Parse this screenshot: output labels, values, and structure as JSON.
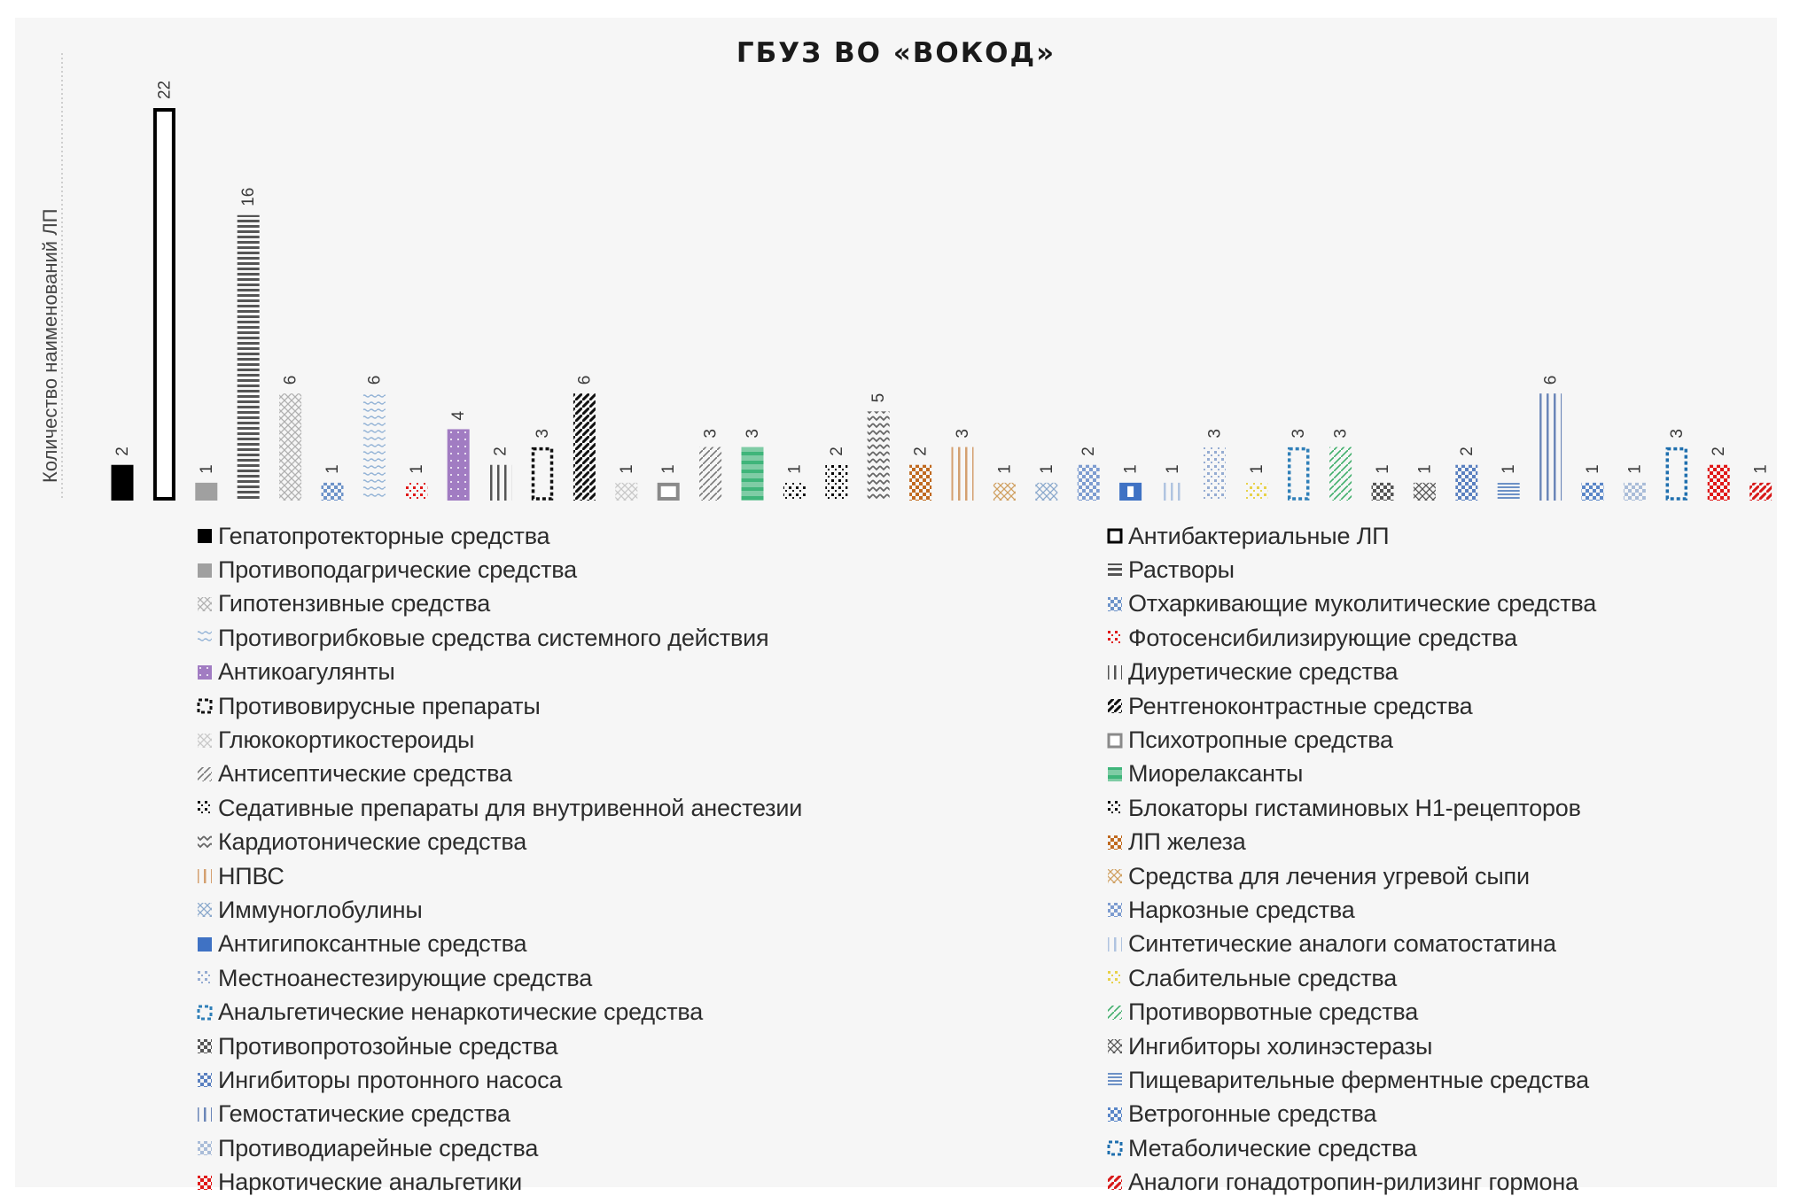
{
  "chart_data": {
    "type": "bar",
    "title": "ГБУЗ ВО «ВОКОД»",
    "xlabel": "",
    "ylabel": "Количество наименований ЛП",
    "ylim": [
      0,
      22
    ],
    "grid": false,
    "data_labels": true,
    "data_label_orientation": "vertical",
    "legend_position": "bottom",
    "categories": [
      "Гепатопротекторные средства",
      "Антибактериальные ЛП",
      "Противоподагрические средства",
      "Растворы",
      "Гипотензивные средства",
      "Отхаркивающие муколитические средства",
      "Противогрибковые средства системного действия",
      "Фотосенсибилизирующие средства",
      "Антикоагулянты",
      "Диуретические средства",
      "Противовирусные препараты",
      "Рентгеноконтрастные средства",
      "Глюкокортикостероиды",
      "Психотропные средства",
      "Антисептические средства",
      "Миорелаксанты",
      "Седативные препараты для внутривенной анестезии",
      "Блокаторы гистаминовых Н1-рецепторов",
      "Кардиотонические средства",
      "ЛП железа",
      "НПВС",
      "Средства для лечения угревой сыпи",
      "Наркозные средства",
      "Иммуноглобулины",
      "Антигипоксантные средства",
      "Синтетические аналоги соматостатина",
      "Местноанестезирующие средства",
      "Слабительные средства",
      "Анальгетические ненаркотические средства",
      "Противорвотные средства",
      "Противопротозойные средства",
      "Ингибиторы холинэстеразы",
      "Ингибиторы протонного насоса",
      "Пищеварительные ферментные средства",
      "Гемостатические средства",
      "Ветрогонные средства",
      "Противодиарейные средства",
      "Метаболические средства",
      "Наркотические анальгетики",
      "Аналоги гонадотропин-рилизинг гормона"
    ],
    "values": [
      2,
      22,
      1,
      16,
      6,
      1,
      6,
      1,
      4,
      2,
      3,
      6,
      1,
      1,
      3,
      3,
      1,
      2,
      5,
      2,
      3,
      1,
      1,
      2,
      1,
      1,
      3,
      1,
      3,
      3,
      1,
      1,
      2,
      1,
      6,
      1,
      1,
      3,
      2,
      1
    ],
    "series_styles": [
      {
        "pattern": "solid",
        "color": "#000000"
      },
      {
        "pattern": "outline",
        "color": "#000000"
      },
      {
        "pattern": "solid",
        "color": "#a0a0a0"
      },
      {
        "pattern": "hlines",
        "color": "#555555"
      },
      {
        "pattern": "cross",
        "color": "#b0b0b0"
      },
      {
        "pattern": "checker",
        "color": "#6d93c9"
      },
      {
        "pattern": "wave",
        "color": "#93b3d6"
      },
      {
        "pattern": "dots",
        "color": "#e01818"
      },
      {
        "pattern": "dotsfill",
        "color": "#a17cc2"
      },
      {
        "pattern": "vlines",
        "color": "#555555"
      },
      {
        "pattern": "dashed-outline",
        "color": "#111111"
      },
      {
        "pattern": "diag",
        "color": "#111111"
      },
      {
        "pattern": "cross",
        "color": "#c8c8c8"
      },
      {
        "pattern": "outline",
        "color": "#8a8a8a"
      },
      {
        "pattern": "diag-thin",
        "color": "#777777"
      },
      {
        "pattern": "hbands",
        "color": "#3fb57a"
      },
      {
        "pattern": "dots",
        "color": "#111111"
      },
      {
        "pattern": "dots",
        "color": "#000000"
      },
      {
        "pattern": "zigzag",
        "color": "#666666"
      },
      {
        "pattern": "checker",
        "color": "#c06a20"
      },
      {
        "pattern": "vlines",
        "color": "#d4a070"
      },
      {
        "pattern": "cross",
        "color": "#d0a060"
      },
      {
        "pattern": "cross",
        "color": "#8aa8cc"
      },
      {
        "pattern": "checker",
        "color": "#7d9cd0"
      },
      {
        "pattern": "solid-window",
        "color": "#3f72c4"
      },
      {
        "pattern": "vlines",
        "color": "#b0c4e0"
      },
      {
        "pattern": "dots",
        "color": "#95acd2"
      },
      {
        "pattern": "dots",
        "color": "#e8d24a"
      },
      {
        "pattern": "dashed-outline",
        "color": "#2f7fb8"
      },
      {
        "pattern": "diag-thin",
        "color": "#3fae6a"
      },
      {
        "pattern": "checker",
        "color": "#555555"
      },
      {
        "pattern": "cross",
        "color": "#555555"
      },
      {
        "pattern": "checker",
        "color": "#5a80c0"
      },
      {
        "pattern": "hlines2",
        "color": "#6d91c6"
      },
      {
        "pattern": "vlines",
        "color": "#6b86b8"
      },
      {
        "pattern": "checker",
        "color": "#5a86c8"
      },
      {
        "pattern": "checker",
        "color": "#a9bcd8"
      },
      {
        "pattern": "dashed-outline",
        "color": "#1f6fae"
      },
      {
        "pattern": "checker",
        "color": "#e01818"
      },
      {
        "pattern": "diag",
        "color": "#d81818"
      }
    ]
  },
  "legend": {
    "left": [
      {
        "label": "Гепатопротекторные средства",
        "index": 0
      },
      {
        "label": "Противоподагрические средства",
        "index": 2
      },
      {
        "label": "Гипотензивные средства",
        "index": 4
      },
      {
        "label": "Противогрибковые средства системного действия",
        "index": 6
      },
      {
        "label": "Антикоагулянты",
        "index": 8
      },
      {
        "label": "Противовирусные препараты",
        "index": 10
      },
      {
        "label": "Глюкокортикостероиды",
        "index": 12
      },
      {
        "label": "Антисептические средства",
        "index": 14
      },
      {
        "label": "Седативные препараты для внутривенной анестезии",
        "index": 16
      },
      {
        "label": "Кардиотонические средства",
        "index": 18
      },
      {
        "label": "НПВС",
        "index": 20
      },
      {
        "label": "Иммуноглобулины",
        "index": 22
      },
      {
        "label": "Антигипоксантные средства",
        "index": 24
      },
      {
        "label": "Местноанестезирующие средства",
        "index": 26
      },
      {
        "label": "Анальгетические ненаркотические средства",
        "index": 28
      },
      {
        "label": "Противопротозойные средства",
        "index": 30
      },
      {
        "label": "Ингибиторы протонного насоса",
        "index": 32
      },
      {
        "label": "Гемостатические средства",
        "index": 34
      },
      {
        "label": "Противодиарейные средства",
        "index": 36
      },
      {
        "label": "Наркотические анальгетики",
        "index": 38
      }
    ],
    "right": [
      {
        "label": "Антибактериальные ЛП",
        "index": 1
      },
      {
        "label": "Растворы",
        "index": 3
      },
      {
        "label": "Отхаркивающие муколитические средства",
        "index": 5
      },
      {
        "label": "Фотосенсибилизирующие средства",
        "index": 7
      },
      {
        "label": "Диуретические средства",
        "index": 9
      },
      {
        "label": "Рентгеноконтрастные средства",
        "index": 11
      },
      {
        "label": "Психотропные средства",
        "index": 13
      },
      {
        "label": "Миорелаксанты",
        "index": 15
      },
      {
        "label": "Блокаторы гистаминовых Н1-рецепторов",
        "index": 17
      },
      {
        "label": "ЛП железа",
        "index": 19
      },
      {
        "label": "Средства для лечения угревой сыпи",
        "index": 21
      },
      {
        "label": "Наркозные средства",
        "index": 23
      },
      {
        "label": "Синтетические аналоги соматостатина",
        "index": 25
      },
      {
        "label": "Слабительные средства",
        "index": 27
      },
      {
        "label": "Противорвотные средства",
        "index": 29
      },
      {
        "label": "Ингибиторы холинэстеразы",
        "index": 31
      },
      {
        "label": "Пищеварительные ферментные средства",
        "index": 33
      },
      {
        "label": "Ветрогонные средства",
        "index": 35
      },
      {
        "label": "Метаболические средства",
        "index": 37
      },
      {
        "label": "Аналоги гонадотропин-рилизинг гормона",
        "index": 39
      }
    ]
  }
}
